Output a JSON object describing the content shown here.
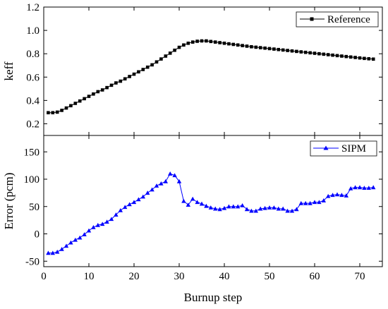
{
  "chart_data": [
    {
      "type": "line",
      "ylabel": "keff",
      "xlim": [
        0,
        75
      ],
      "ylim": [
        0.1,
        1.2
      ],
      "yticks": [
        "0.2",
        "0.4",
        "0.6",
        "0.8",
        "1.0",
        "1.2"
      ],
      "grid": false,
      "legend": "top-right",
      "series": [
        {
          "name": "Reference",
          "color": "#000000",
          "marker": "square",
          "x": [
            1,
            2,
            3,
            4,
            5,
            6,
            7,
            8,
            9,
            10,
            11,
            12,
            13,
            14,
            15,
            16,
            17,
            18,
            19,
            20,
            21,
            22,
            23,
            24,
            25,
            26,
            27,
            28,
            29,
            30,
            31,
            32,
            33,
            34,
            35,
            36,
            37,
            38,
            39,
            40,
            41,
            42,
            43,
            44,
            45,
            46,
            47,
            48,
            49,
            50,
            51,
            52,
            53,
            54,
            55,
            56,
            57,
            58,
            59,
            60,
            61,
            62,
            63,
            64,
            65,
            66,
            67,
            68,
            69,
            70,
            71,
            72,
            73
          ],
          "y": [
            0.295,
            0.295,
            0.3,
            0.315,
            0.335,
            0.355,
            0.375,
            0.395,
            0.415,
            0.435,
            0.455,
            0.475,
            0.49,
            0.51,
            0.53,
            0.55,
            0.565,
            0.585,
            0.605,
            0.625,
            0.645,
            0.665,
            0.685,
            0.705,
            0.73,
            0.755,
            0.78,
            0.805,
            0.83,
            0.855,
            0.875,
            0.89,
            0.9,
            0.907,
            0.91,
            0.91,
            0.905,
            0.9,
            0.895,
            0.89,
            0.885,
            0.88,
            0.875,
            0.87,
            0.865,
            0.86,
            0.856,
            0.852,
            0.848,
            0.844,
            0.84,
            0.836,
            0.832,
            0.828,
            0.824,
            0.82,
            0.816,
            0.812,
            0.808,
            0.804,
            0.8,
            0.796,
            0.792,
            0.788,
            0.784,
            0.78,
            0.776,
            0.772,
            0.768,
            0.764,
            0.76,
            0.757,
            0.754
          ]
        }
      ]
    },
    {
      "type": "line",
      "xlabel": "Burnup step",
      "ylabel": "Error (pcm)",
      "xlim": [
        0,
        75
      ],
      "ylim": [
        -60,
        180
      ],
      "xticks": [
        "0",
        "10",
        "20",
        "30",
        "40",
        "50",
        "60",
        "70"
      ],
      "yticks": [
        "-50",
        "0",
        "50",
        "100",
        "150"
      ],
      "grid": false,
      "legend": "top-right",
      "series": [
        {
          "name": "SIPM",
          "color": "#0000ff",
          "marker": "triangle",
          "x": [
            1,
            2,
            3,
            4,
            5,
            6,
            7,
            8,
            9,
            10,
            11,
            12,
            13,
            14,
            15,
            16,
            17,
            18,
            19,
            20,
            21,
            22,
            23,
            24,
            25,
            26,
            27,
            28,
            29,
            30,
            31,
            32,
            33,
            34,
            35,
            36,
            37,
            38,
            39,
            40,
            41,
            42,
            43,
            44,
            45,
            46,
            47,
            48,
            49,
            50,
            51,
            52,
            53,
            54,
            55,
            56,
            57,
            58,
            59,
            60,
            61,
            62,
            63,
            64,
            65,
            66,
            67,
            68,
            69,
            70,
            71,
            72,
            73
          ],
          "y": [
            -35,
            -35,
            -33,
            -28,
            -22,
            -16,
            -11,
            -7,
            -1,
            6,
            12,
            16,
            18,
            22,
            27,
            35,
            43,
            49,
            54,
            58,
            63,
            68,
            75,
            81,
            88,
            92,
            96,
            110,
            107,
            96,
            60,
            53,
            64,
            58,
            55,
            51,
            48,
            46,
            45,
            47,
            50,
            50,
            50,
            52,
            45,
            42,
            42,
            46,
            47,
            48,
            48,
            46,
            46,
            42,
            42,
            45,
            56,
            56,
            56,
            58,
            58,
            61,
            69,
            71,
            72,
            71,
            70,
            83,
            85,
            85,
            84,
            84,
            85
          ]
        }
      ]
    }
  ]
}
